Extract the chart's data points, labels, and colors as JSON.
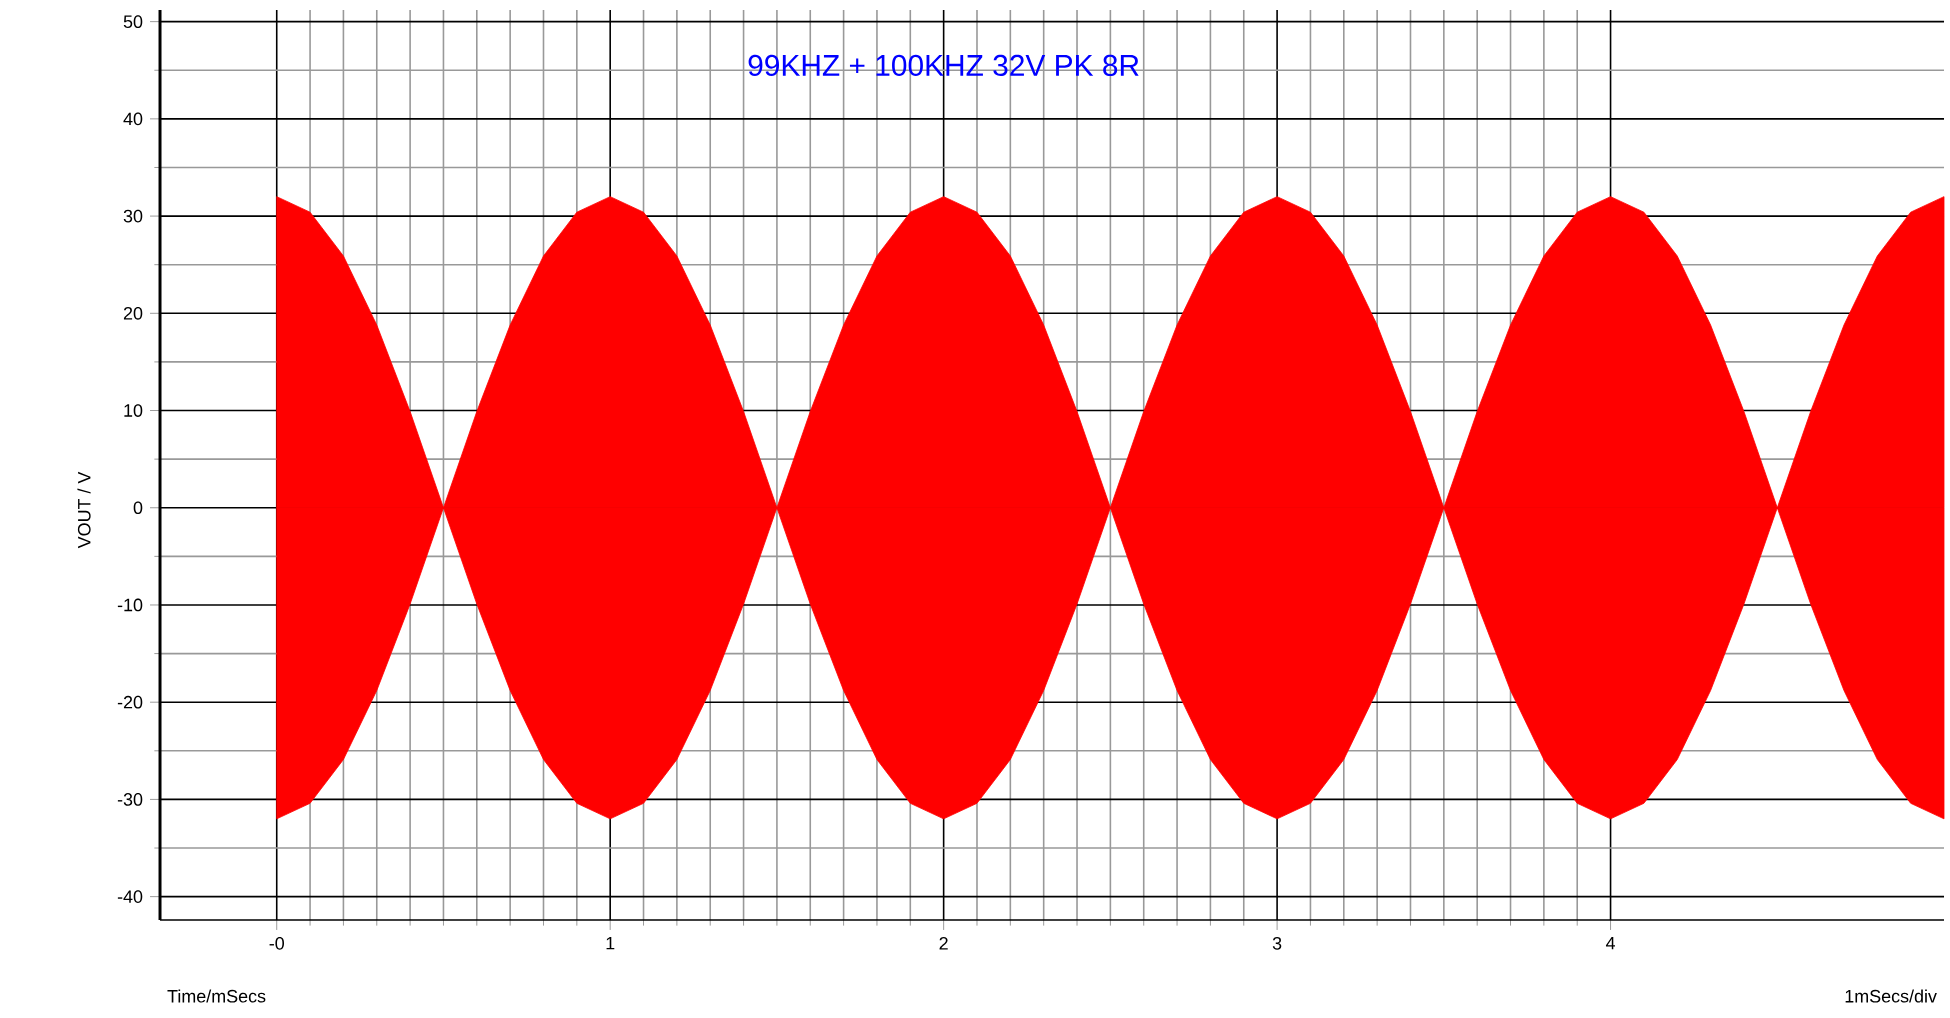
{
  "chart_data": {
    "type": "area",
    "title": "99KHZ + 100KHZ 32V PK 8R",
    "xlabel": "Time/mSecs",
    "ylabel": "VOUT / V",
    "annotations": [
      "1mSecs/div"
    ],
    "x": [
      0,
      0.1,
      0.2,
      0.3,
      0.4,
      0.5,
      0.6,
      0.7,
      0.8,
      0.9,
      1,
      1.1,
      1.2,
      1.3,
      1.4,
      1.5,
      1.6,
      1.7,
      1.8,
      1.9,
      2,
      2.1,
      2.2,
      2.3,
      2.4,
      2.5,
      2.6,
      2.7,
      2.8,
      2.9,
      3,
      3.1,
      3.2,
      3.3,
      3.4,
      3.5,
      3.6,
      3.7,
      3.8,
      3.9,
      4,
      4.1,
      4.2,
      4.3,
      4.4,
      4.5,
      4.6,
      4.7,
      4.8,
      4.9,
      5
    ],
    "series": [
      {
        "color": "#ff0000",
        "values": [
          32,
          30.4,
          25.9,
          18.8,
          9.9,
          0,
          9.9,
          18.8,
          25.9,
          30.4,
          32,
          30.4,
          25.9,
          18.8,
          9.9,
          0,
          9.9,
          18.8,
          25.9,
          30.4,
          32,
          30.4,
          25.9,
          18.8,
          9.9,
          0,
          9.9,
          18.8,
          25.9,
          30.4,
          32,
          30.4,
          25.9,
          18.8,
          9.9,
          0,
          9.9,
          18.8,
          25.9,
          30.4,
          32,
          30.4,
          25.9,
          18.8,
          9.9,
          0,
          9.9,
          18.8,
          25.9,
          30.4,
          32
        ]
      },
      {
        "color": "#ff0000",
        "values": [
          -32,
          -30.4,
          -25.9,
          -18.8,
          -9.9,
          0,
          -9.9,
          -18.8,
          -25.9,
          -30.4,
          -32,
          -30.4,
          -25.9,
          -18.8,
          -9.9,
          0,
          -9.9,
          -18.8,
          -25.9,
          -30.4,
          -32,
          -30.4,
          -25.9,
          -18.8,
          -9.9,
          0,
          -9.9,
          -18.8,
          -25.9,
          -30.4,
          -32,
          -30.4,
          -25.9,
          -18.8,
          -9.9,
          0,
          -9.9,
          -18.8,
          -25.9,
          -30.4,
          -32,
          -30.4,
          -25.9,
          -18.8,
          -9.9,
          0,
          -9.9,
          -18.8,
          -25.9,
          -30.4,
          -32
        ]
      }
    ],
    "xlim": [
      -0.35,
      5
    ],
    "ylim": [
      -42.4,
      51.2
    ],
    "xticks": [
      {
        "value": 0,
        "label": "-0"
      },
      1,
      2,
      3,
      4
    ],
    "yticks": [
      -40,
      -30,
      -20,
      -10,
      0,
      10,
      20,
      30,
      40,
      50
    ],
    "grid": true
  }
}
